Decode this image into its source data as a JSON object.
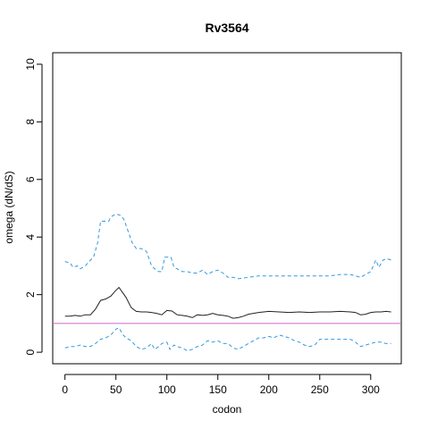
{
  "chart_data": {
    "type": "line",
    "title": "Rv3564",
    "xlabel": "codon",
    "ylabel": "omega (dN/dS)",
    "xlim": [
      -12,
      330
    ],
    "ylim": [
      -0.4,
      10.4
    ],
    "x_ticks": [
      0,
      50,
      100,
      150,
      200,
      250,
      300
    ],
    "y_ticks": [
      0,
      2,
      4,
      6,
      8,
      10
    ],
    "reference_line": {
      "y": 1,
      "color": "#cc66cc"
    },
    "series": [
      {
        "style": "solid",
        "color": "#222222",
        "points": [
          [
            0,
            1.25
          ],
          [
            5,
            1.25
          ],
          [
            10,
            1.28
          ],
          [
            15,
            1.25
          ],
          [
            20,
            1.3
          ],
          [
            25,
            1.3
          ],
          [
            30,
            1.5
          ],
          [
            35,
            1.8
          ],
          [
            40,
            1.85
          ],
          [
            45,
            1.95
          ],
          [
            50,
            2.15
          ],
          [
            53,
            2.25
          ],
          [
            57,
            2.05
          ],
          [
            60,
            1.9
          ],
          [
            65,
            1.55
          ],
          [
            70,
            1.42
          ],
          [
            75,
            1.4
          ],
          [
            80,
            1.4
          ],
          [
            85,
            1.38
          ],
          [
            90,
            1.35
          ],
          [
            95,
            1.3
          ],
          [
            100,
            1.45
          ],
          [
            105,
            1.43
          ],
          [
            110,
            1.3
          ],
          [
            115,
            1.28
          ],
          [
            120,
            1.25
          ],
          [
            125,
            1.2
          ],
          [
            130,
            1.3
          ],
          [
            135,
            1.28
          ],
          [
            140,
            1.3
          ],
          [
            145,
            1.35
          ],
          [
            150,
            1.3
          ],
          [
            155,
            1.28
          ],
          [
            160,
            1.25
          ],
          [
            165,
            1.18
          ],
          [
            170,
            1.2
          ],
          [
            175,
            1.25
          ],
          [
            180,
            1.32
          ],
          [
            185,
            1.35
          ],
          [
            190,
            1.38
          ],
          [
            195,
            1.4
          ],
          [
            200,
            1.42
          ],
          [
            210,
            1.4
          ],
          [
            220,
            1.38
          ],
          [
            230,
            1.4
          ],
          [
            240,
            1.38
          ],
          [
            250,
            1.4
          ],
          [
            260,
            1.4
          ],
          [
            270,
            1.42
          ],
          [
            280,
            1.4
          ],
          [
            285,
            1.38
          ],
          [
            290,
            1.3
          ],
          [
            295,
            1.32
          ],
          [
            300,
            1.38
          ],
          [
            305,
            1.4
          ],
          [
            310,
            1.4
          ],
          [
            315,
            1.42
          ],
          [
            320,
            1.4
          ]
        ]
      },
      {
        "style": "dashed",
        "color": "#3399dd",
        "points": [
          [
            0,
            3.15
          ],
          [
            5,
            3.1
          ],
          [
            8,
            2.95
          ],
          [
            12,
            3.0
          ],
          [
            15,
            2.9
          ],
          [
            20,
            3.0
          ],
          [
            25,
            3.2
          ],
          [
            28,
            3.3
          ],
          [
            32,
            3.8
          ],
          [
            35,
            4.55
          ],
          [
            40,
            4.55
          ],
          [
            43,
            4.55
          ],
          [
            45,
            4.7
          ],
          [
            50,
            4.8
          ],
          [
            55,
            4.75
          ],
          [
            58,
            4.6
          ],
          [
            62,
            4.2
          ],
          [
            66,
            3.8
          ],
          [
            70,
            3.6
          ],
          [
            75,
            3.6
          ],
          [
            80,
            3.5
          ],
          [
            85,
            3.0
          ],
          [
            88,
            2.9
          ],
          [
            92,
            2.8
          ],
          [
            95,
            2.8
          ],
          [
            98,
            3.3
          ],
          [
            104,
            3.3
          ],
          [
            107,
            2.95
          ],
          [
            110,
            2.9
          ],
          [
            115,
            2.8
          ],
          [
            120,
            2.8
          ],
          [
            125,
            2.75
          ],
          [
            130,
            2.75
          ],
          [
            135,
            2.85
          ],
          [
            140,
            2.7
          ],
          [
            145,
            2.8
          ],
          [
            150,
            2.85
          ],
          [
            155,
            2.75
          ],
          [
            160,
            2.6
          ],
          [
            165,
            2.6
          ],
          [
            170,
            2.55
          ],
          [
            180,
            2.6
          ],
          [
            190,
            2.65
          ],
          [
            200,
            2.65
          ],
          [
            210,
            2.65
          ],
          [
            220,
            2.65
          ],
          [
            230,
            2.65
          ],
          [
            240,
            2.65
          ],
          [
            250,
            2.65
          ],
          [
            260,
            2.65
          ],
          [
            270,
            2.7
          ],
          [
            280,
            2.7
          ],
          [
            285,
            2.65
          ],
          [
            290,
            2.6
          ],
          [
            295,
            2.7
          ],
          [
            300,
            2.8
          ],
          [
            305,
            3.2
          ],
          [
            308,
            2.95
          ],
          [
            312,
            3.2
          ],
          [
            316,
            3.25
          ],
          [
            320,
            3.2
          ]
        ]
      },
      {
        "style": "dashed",
        "color": "#3399dd",
        "points": [
          [
            0,
            0.15
          ],
          [
            5,
            0.2
          ],
          [
            10,
            0.2
          ],
          [
            15,
            0.25
          ],
          [
            20,
            0.2
          ],
          [
            25,
            0.2
          ],
          [
            30,
            0.3
          ],
          [
            35,
            0.45
          ],
          [
            40,
            0.5
          ],
          [
            45,
            0.6
          ],
          [
            50,
            0.8
          ],
          [
            53,
            0.85
          ],
          [
            57,
            0.6
          ],
          [
            60,
            0.5
          ],
          [
            65,
            0.4
          ],
          [
            70,
            0.2
          ],
          [
            75,
            0.1
          ],
          [
            80,
            0.15
          ],
          [
            85,
            0.3
          ],
          [
            88,
            0.1
          ],
          [
            92,
            0.2
          ],
          [
            95,
            0.3
          ],
          [
            100,
            0.35
          ],
          [
            103,
            0.1
          ],
          [
            107,
            0.25
          ],
          [
            110,
            0.2
          ],
          [
            115,
            0.15
          ],
          [
            120,
            0.05
          ],
          [
            125,
            0.1
          ],
          [
            130,
            0.2
          ],
          [
            135,
            0.25
          ],
          [
            140,
            0.4
          ],
          [
            145,
            0.35
          ],
          [
            150,
            0.4
          ],
          [
            155,
            0.3
          ],
          [
            160,
            0.3
          ],
          [
            165,
            0.15
          ],
          [
            170,
            0.1
          ],
          [
            175,
            0.2
          ],
          [
            180,
            0.3
          ],
          [
            185,
            0.4
          ],
          [
            190,
            0.5
          ],
          [
            195,
            0.5
          ],
          [
            200,
            0.55
          ],
          [
            205,
            0.5
          ],
          [
            210,
            0.6
          ],
          [
            215,
            0.55
          ],
          [
            220,
            0.5
          ],
          [
            225,
            0.4
          ],
          [
            230,
            0.35
          ],
          [
            235,
            0.25
          ],
          [
            240,
            0.2
          ],
          [
            245,
            0.25
          ],
          [
            250,
            0.45
          ],
          [
            260,
            0.45
          ],
          [
            270,
            0.45
          ],
          [
            280,
            0.45
          ],
          [
            285,
            0.35
          ],
          [
            290,
            0.2
          ],
          [
            295,
            0.25
          ],
          [
            300,
            0.3
          ],
          [
            305,
            0.35
          ],
          [
            310,
            0.35
          ],
          [
            315,
            0.3
          ],
          [
            320,
            0.3
          ]
        ]
      }
    ]
  }
}
